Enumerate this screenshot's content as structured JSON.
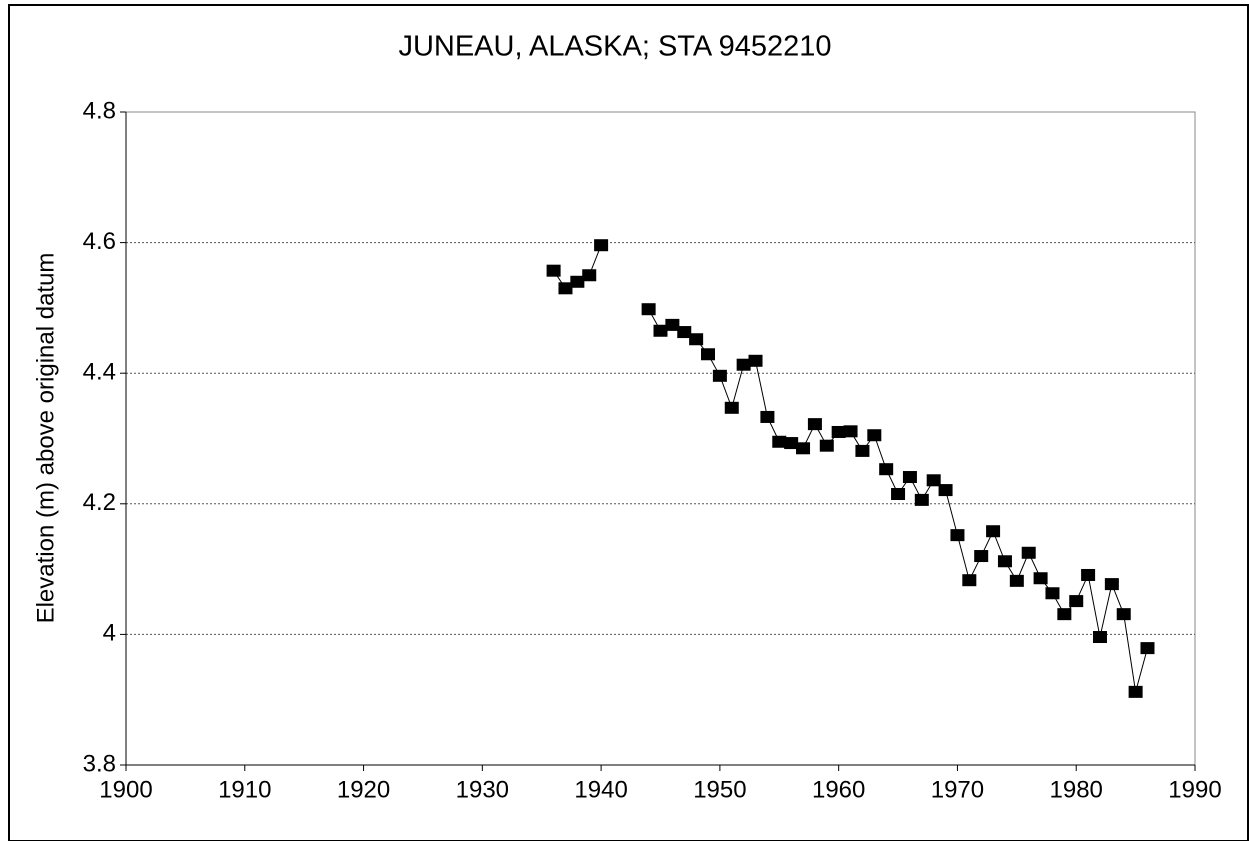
{
  "chart_data": {
    "type": "line",
    "title": "JUNEAU, ALASKA; STA 9452210",
    "y_label": "Elevation (m) above original datum",
    "x": [
      1936,
      1937,
      1938,
      1939,
      1940,
      1941,
      1942,
      1943,
      1944,
      1945,
      1946,
      1947,
      1948,
      1949,
      1950,
      1951,
      1952,
      1953,
      1954,
      1955,
      1956,
      1957,
      1958,
      1959,
      1960,
      1961,
      1962,
      1963,
      1964,
      1965,
      1966,
      1967,
      1968,
      1969,
      1970,
      1971,
      1972,
      1973,
      1974,
      1975,
      1976,
      1977,
      1978,
      1979,
      1980,
      1981,
      1982,
      1983,
      1984,
      1985,
      1986
    ],
    "series": [
      {
        "name": "Elevation",
        "color": "#000000",
        "values": [
          4.557,
          4.53,
          4.54,
          4.55,
          4.596,
          null,
          null,
          null,
          4.498,
          4.465,
          4.474,
          4.463,
          4.452,
          4.429,
          4.396,
          4.347,
          4.413,
          4.419,
          4.333,
          4.295,
          4.293,
          4.285,
          4.322,
          4.289,
          4.31,
          4.311,
          4.281,
          4.305,
          4.253,
          4.215,
          4.241,
          4.206,
          4.236,
          4.221,
          4.152,
          4.083,
          4.12,
          4.158,
          4.112,
          4.082,
          4.125,
          4.086,
          4.063,
          4.031,
          4.051,
          4.091,
          3.996,
          4.077,
          4.031,
          3.912,
          3.979
        ]
      }
    ],
    "xlim": [
      1900,
      1990
    ],
    "xticks": [
      1900,
      1910,
      1920,
      1930,
      1940,
      1950,
      1960,
      1970,
      1980,
      1990
    ],
    "ylim": [
      3.8,
      4.8
    ],
    "yticks": [
      3.8,
      4.0,
      4.2,
      4.4,
      4.6,
      4.8
    ],
    "grid": true
  }
}
